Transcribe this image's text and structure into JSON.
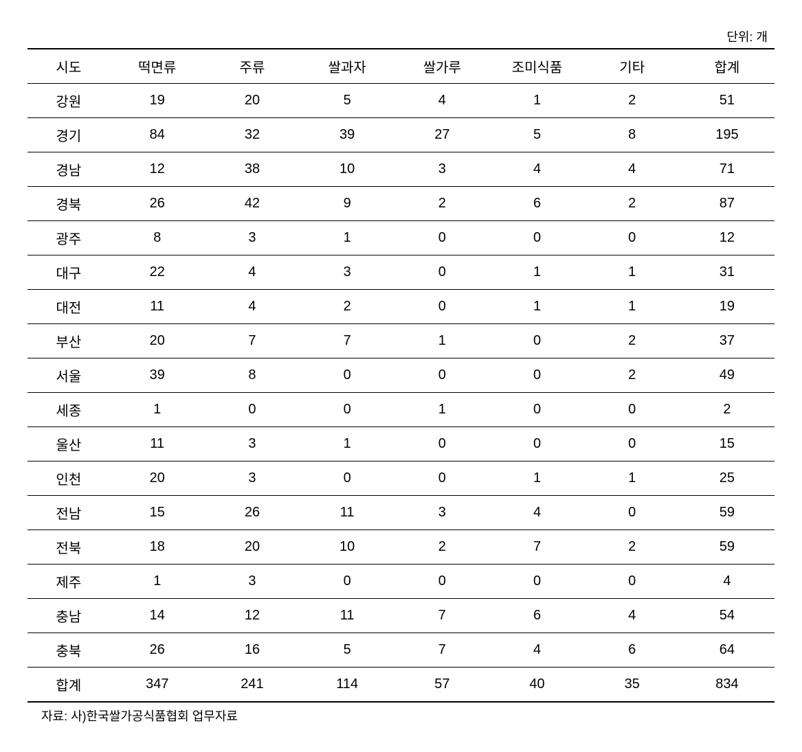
{
  "unit_label": "단위: 개",
  "table": {
    "type": "table",
    "columns": [
      "시도",
      "떡면류",
      "주류",
      "쌀과자",
      "쌀가루",
      "조미식품",
      "기타",
      "합계"
    ],
    "rows": [
      [
        "강원",
        "19",
        "20",
        "5",
        "4",
        "1",
        "2",
        "51"
      ],
      [
        "경기",
        "84",
        "32",
        "39",
        "27",
        "5",
        "8",
        "195"
      ],
      [
        "경남",
        "12",
        "38",
        "10",
        "3",
        "4",
        "4",
        "71"
      ],
      [
        "경북",
        "26",
        "42",
        "9",
        "2",
        "6",
        "2",
        "87"
      ],
      [
        "광주",
        "8",
        "3",
        "1",
        "0",
        "0",
        "0",
        "12"
      ],
      [
        "대구",
        "22",
        "4",
        "3",
        "0",
        "1",
        "1",
        "31"
      ],
      [
        "대전",
        "11",
        "4",
        "2",
        "0",
        "1",
        "1",
        "19"
      ],
      [
        "부산",
        "20",
        "7",
        "7",
        "1",
        "0",
        "2",
        "37"
      ],
      [
        "서울",
        "39",
        "8",
        "0",
        "0",
        "0",
        "2",
        "49"
      ],
      [
        "세종",
        "1",
        "0",
        "0",
        "1",
        "0",
        "0",
        "2"
      ],
      [
        "울산",
        "11",
        "3",
        "1",
        "0",
        "0",
        "0",
        "15"
      ],
      [
        "인천",
        "20",
        "3",
        "0",
        "0",
        "1",
        "1",
        "25"
      ],
      [
        "전남",
        "15",
        "26",
        "11",
        "3",
        "4",
        "0",
        "59"
      ],
      [
        "전북",
        "18",
        "20",
        "10",
        "2",
        "7",
        "2",
        "59"
      ],
      [
        "제주",
        "1",
        "3",
        "0",
        "0",
        "0",
        "0",
        "4"
      ],
      [
        "충남",
        "14",
        "12",
        "11",
        "7",
        "6",
        "4",
        "54"
      ],
      [
        "충북",
        "26",
        "16",
        "5",
        "7",
        "4",
        "6",
        "64"
      ],
      [
        "합계",
        "347",
        "241",
        "114",
        "57",
        "40",
        "35",
        "834"
      ]
    ],
    "border_color": "#000000",
    "background_color": "#ffffff",
    "text_color": "#000000",
    "header_fontsize": 20,
    "cell_fontsize": 20,
    "top_border_width": 2,
    "bottom_border_width": 2,
    "row_border_width": 1
  },
  "source_note": "자료: 사)한국쌀가공식품협회 업무자료"
}
